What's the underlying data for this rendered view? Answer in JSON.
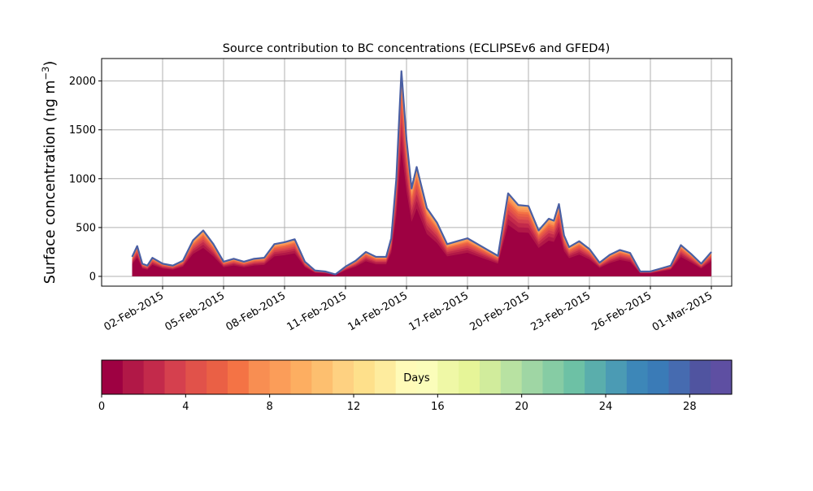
{
  "chart_data": {
    "type": "area",
    "title": "Source contribution to BC concentrations (ECLIPSEv6 and GFED4)",
    "ylabel": "Surface concentration (ng m",
    "ylabel_sup": "−3",
    "ylabel_close": ")",
    "ylim": [
      -100,
      2230
    ],
    "yticks": [
      0,
      500,
      1000,
      1500,
      2000
    ],
    "xlim": [
      "2015-01-30",
      "2015-03-02"
    ],
    "xticks": [
      "02-Feb-2015",
      "05-Feb-2015",
      "08-Feb-2015",
      "11-Feb-2015",
      "14-Feb-2015",
      "17-Feb-2015",
      "20-Feb-2015",
      "23-Feb-2015",
      "26-Feb-2015",
      "01-Mar-2015"
    ],
    "grid": true,
    "stack_note": "stacked contributions by emission age (0-30 days), outer outline = total",
    "total": {
      "x": [
        "2015-01-31 12:00",
        "2015-01-31 18:00",
        "2015-02-01 00:00",
        "2015-02-01 06:00",
        "2015-02-01 12:00",
        "2015-02-02 00:00",
        "2015-02-02 12:00",
        "2015-02-03 00:00",
        "2015-02-03 12:00",
        "2015-02-04 00:00",
        "2015-02-04 12:00",
        "2015-02-05 00:00",
        "2015-02-05 12:00",
        "2015-02-06 00:00",
        "2015-02-06 12:00",
        "2015-02-07 00:00",
        "2015-02-07 12:00",
        "2015-02-08 00:00",
        "2015-02-08 12:00",
        "2015-02-09 00:00",
        "2015-02-09 12:00",
        "2015-02-10 00:00",
        "2015-02-10 12:00",
        "2015-02-11 00:00",
        "2015-02-11 12:00",
        "2015-02-12 00:00",
        "2015-02-12 12:00",
        "2015-02-13 00:00",
        "2015-02-13 06:00",
        "2015-02-13 12:00",
        "2015-02-13 18:00",
        "2015-02-14 00:00",
        "2015-02-14 06:00",
        "2015-02-14 12:00",
        "2015-02-15 00:00",
        "2015-02-15 12:00",
        "2015-02-16 00:00",
        "2015-02-16 12:00",
        "2015-02-17 00:00",
        "2015-02-17 12:00",
        "2015-02-18 00:00",
        "2015-02-18 12:00",
        "2015-02-19 00:00",
        "2015-02-19 12:00",
        "2015-02-20 00:00",
        "2015-02-20 12:00",
        "2015-02-21 00:00",
        "2015-02-21 06:00",
        "2015-02-21 12:00",
        "2015-02-21 18:00",
        "2015-02-22 00:00",
        "2015-02-22 12:00",
        "2015-02-23 00:00",
        "2015-02-23 12:00",
        "2015-02-24 00:00",
        "2015-02-24 12:00",
        "2015-02-25 00:00",
        "2015-02-25 12:00",
        "2015-02-26 00:00",
        "2015-02-26 12:00",
        "2015-02-27 00:00",
        "2015-02-27 12:00",
        "2015-02-28 00:00",
        "2015-02-28 12:00",
        "2015-03-01 00:00"
      ],
      "y": [
        200,
        310,
        130,
        110,
        190,
        130,
        110,
        160,
        370,
        470,
        330,
        150,
        180,
        150,
        180,
        190,
        330,
        350,
        380,
        150,
        60,
        50,
        20,
        100,
        160,
        250,
        200,
        200,
        390,
        1000,
        2100,
        1400,
        900,
        1120,
        700,
        550,
        330,
        360,
        390,
        330,
        270,
        210,
        850,
        730,
        720,
        470,
        590,
        570,
        740,
        420,
        300,
        360,
        280,
        140,
        220,
        270,
        240,
        50,
        50,
        80,
        110,
        320,
        230,
        130,
        250
      ]
    },
    "colorbar": {
      "label": "Days",
      "min": 0,
      "max": 30,
      "ticks": [
        0,
        4,
        8,
        12,
        16,
        20,
        24,
        28
      ],
      "colors": [
        "#9e0142",
        "#b11847",
        "#c32a4b",
        "#d5404e",
        "#e1524a",
        "#ea6045",
        "#f47345",
        "#f88e52",
        "#fb9d59",
        "#fdae61",
        "#fdbf6f",
        "#fed181",
        "#fee08b",
        "#feec9e",
        "#fffbb8",
        "#fbfdba",
        "#eff8a6",
        "#e6f598",
        "#d1ec9c",
        "#b8e2a2",
        "#9fd6a4",
        "#86cca4",
        "#6dc1a5",
        "#5aaeac",
        "#4b9bb4",
        "#3d87b8",
        "#3a7bb7",
        "#466bb0",
        "#5054a0",
        "#5e4fa2"
      ]
    }
  }
}
